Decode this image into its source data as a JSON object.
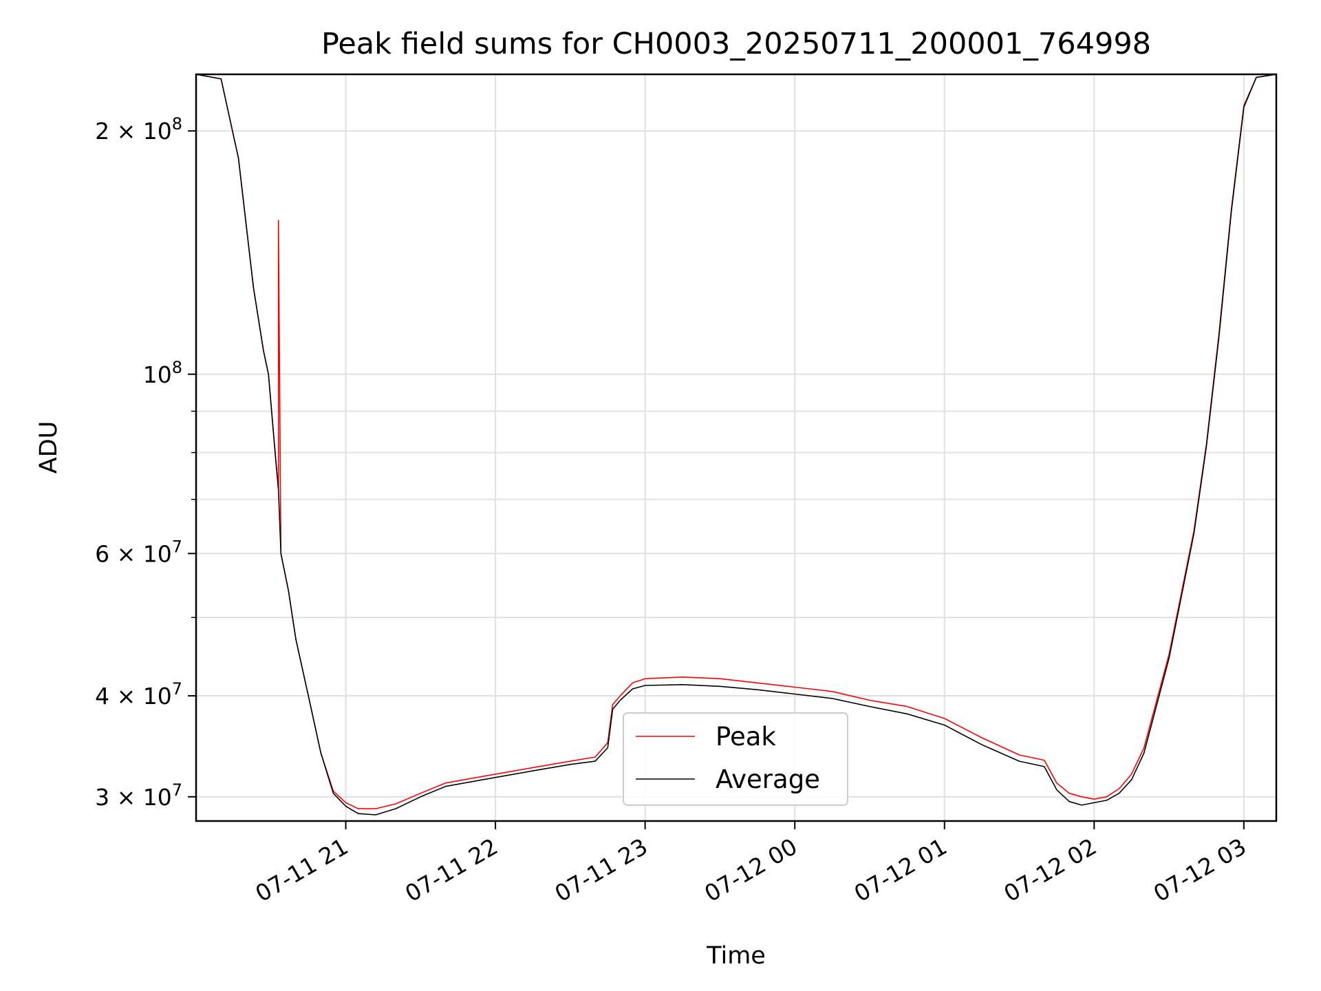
{
  "chart_data": {
    "type": "line",
    "title": "Peak field sums for CH0003_20250711_200001_764998",
    "xlabel": "Time",
    "ylabel": "ADU",
    "yscale": "log",
    "ylim": [
      28000000,
      235000000
    ],
    "xlim": [
      "2025-07-11 20:00",
      "2025-07-12 03:13"
    ],
    "grid": true,
    "legend_position": "lower center",
    "colors": {
      "Peak": "#ff0000",
      "Average": "#000000"
    },
    "x_ticks": [
      {
        "x": "2025-07-11 21:00",
        "label": "07-11 21"
      },
      {
        "x": "2025-07-11 22:00",
        "label": "07-11 22"
      },
      {
        "x": "2025-07-11 23:00",
        "label": "07-11 23"
      },
      {
        "x": "2025-07-12 00:00",
        "label": "07-12 00"
      },
      {
        "x": "2025-07-12 01:00",
        "label": "07-12 01"
      },
      {
        "x": "2025-07-12 02:00",
        "label": "07-12 02"
      },
      {
        "x": "2025-07-12 03:00",
        "label": "07-12 03"
      }
    ],
    "y_ticks": [
      {
        "value": 30000000,
        "label": "3 × 10^7"
      },
      {
        "value": 40000000,
        "label": "4 × 10^7"
      },
      {
        "value": 60000000,
        "label": "6 × 10^7"
      },
      {
        "value": 100000000,
        "label": "10^8"
      },
      {
        "value": 200000000,
        "label": "2 × 10^8"
      }
    ],
    "y_minor_ticks": [
      50000000,
      70000000,
      80000000,
      90000000
    ],
    "series": [
      {
        "name": "Peak",
        "x": [
          "2025-07-11 20:00",
          "2025-07-11 20:10",
          "2025-07-11 20:17",
          "2025-07-11 20:23",
          "2025-07-11 20:27",
          "2025-07-11 20:29",
          "2025-07-11 20:32",
          "2025-07-11 20:33",
          "2025-07-11 20:33",
          "2025-07-11 20:34",
          "2025-07-11 20:37",
          "2025-07-11 20:40",
          "2025-07-11 20:45",
          "2025-07-11 20:50",
          "2025-07-11 20:55",
          "2025-07-11 21:00",
          "2025-07-11 21:05",
          "2025-07-11 21:12",
          "2025-07-11 21:20",
          "2025-07-11 21:30",
          "2025-07-11 21:40",
          "2025-07-11 21:50",
          "2025-07-11 22:00",
          "2025-07-11 22:15",
          "2025-07-11 22:30",
          "2025-07-11 22:40",
          "2025-07-11 22:45",
          "2025-07-11 22:47",
          "2025-07-11 22:50",
          "2025-07-11 22:55",
          "2025-07-11 23:00",
          "2025-07-11 23:15",
          "2025-07-11 23:30",
          "2025-07-11 23:45",
          "2025-07-12 00:00",
          "2025-07-12 00:15",
          "2025-07-12 00:30",
          "2025-07-12 00:45",
          "2025-07-12 01:00",
          "2025-07-12 01:15",
          "2025-07-12 01:30",
          "2025-07-12 01:40",
          "2025-07-12 01:45",
          "2025-07-12 01:50",
          "2025-07-12 01:55",
          "2025-07-12 02:00",
          "2025-07-12 02:05",
          "2025-07-12 02:10",
          "2025-07-12 02:15",
          "2025-07-12 02:20",
          "2025-07-12 02:30",
          "2025-07-12 02:40",
          "2025-07-12 02:45",
          "2025-07-12 02:50",
          "2025-07-12 02:55",
          "2025-07-12 03:00",
          "2025-07-12 03:05",
          "2025-07-12 03:13"
        ],
        "y": [
          235000000,
          232000000,
          185000000,
          128000000,
          107000000,
          100000000,
          78000000,
          72000000,
          155000000,
          60000000,
          54000000,
          47000000,
          40000000,
          34000000,
          30500000,
          29500000,
          29000000,
          29000000,
          29400000,
          30300000,
          31200000,
          31600000,
          32000000,
          32600000,
          33200000,
          33600000,
          35000000,
          39000000,
          40000000,
          41500000,
          42000000,
          42200000,
          42000000,
          41500000,
          41000000,
          40500000,
          39500000,
          38800000,
          37500000,
          35500000,
          33800000,
          33300000,
          31200000,
          30300000,
          30000000,
          29800000,
          30000000,
          30700000,
          32000000,
          34500000,
          45000000,
          64000000,
          82000000,
          112000000,
          160000000,
          215000000,
          233000000,
          235000000
        ]
      },
      {
        "name": "Average",
        "x": [
          "2025-07-11 20:00",
          "2025-07-11 20:10",
          "2025-07-11 20:17",
          "2025-07-11 20:23",
          "2025-07-11 20:27",
          "2025-07-11 20:29",
          "2025-07-11 20:32",
          "2025-07-11 20:33",
          "2025-07-11 20:34",
          "2025-07-11 20:37",
          "2025-07-11 20:40",
          "2025-07-11 20:45",
          "2025-07-11 20:50",
          "2025-07-11 20:55",
          "2025-07-11 21:00",
          "2025-07-11 21:05",
          "2025-07-11 21:12",
          "2025-07-11 21:20",
          "2025-07-11 21:30",
          "2025-07-11 21:40",
          "2025-07-11 21:50",
          "2025-07-11 22:00",
          "2025-07-11 22:15",
          "2025-07-11 22:30",
          "2025-07-11 22:40",
          "2025-07-11 22:45",
          "2025-07-11 22:47",
          "2025-07-11 22:50",
          "2025-07-11 22:55",
          "2025-07-11 23:00",
          "2025-07-11 23:15",
          "2025-07-11 23:30",
          "2025-07-11 23:45",
          "2025-07-12 00:00",
          "2025-07-12 00:15",
          "2025-07-12 00:30",
          "2025-07-12 00:45",
          "2025-07-12 01:00",
          "2025-07-12 01:15",
          "2025-07-12 01:30",
          "2025-07-12 01:40",
          "2025-07-12 01:45",
          "2025-07-12 01:50",
          "2025-07-12 01:55",
          "2025-07-12 02:00",
          "2025-07-12 02:05",
          "2025-07-12 02:10",
          "2025-07-12 02:15",
          "2025-07-12 02:20",
          "2025-07-12 02:30",
          "2025-07-12 02:40",
          "2025-07-12 02:45",
          "2025-07-12 02:50",
          "2025-07-12 02:55",
          "2025-07-12 03:00",
          "2025-07-12 03:05",
          "2025-07-12 03:13"
        ],
        "y": [
          235000000,
          232000000,
          185000000,
          128000000,
          107000000,
          100000000,
          78000000,
          72000000,
          60000000,
          54000000,
          47000000,
          40000000,
          34000000,
          30300000,
          29200000,
          28600000,
          28500000,
          29000000,
          30000000,
          30900000,
          31300000,
          31700000,
          32300000,
          32900000,
          33200000,
          34500000,
          38500000,
          39500000,
          40800000,
          41200000,
          41300000,
          41100000,
          40700000,
          40200000,
          39700000,
          38800000,
          38000000,
          36800000,
          34800000,
          33200000,
          32700000,
          30600000,
          29600000,
          29300000,
          29500000,
          29700000,
          30300000,
          31500000,
          34000000,
          44500000,
          63500000,
          81500000,
          111000000,
          159000000,
          214000000,
          233000000,
          235000000
        ]
      }
    ]
  }
}
